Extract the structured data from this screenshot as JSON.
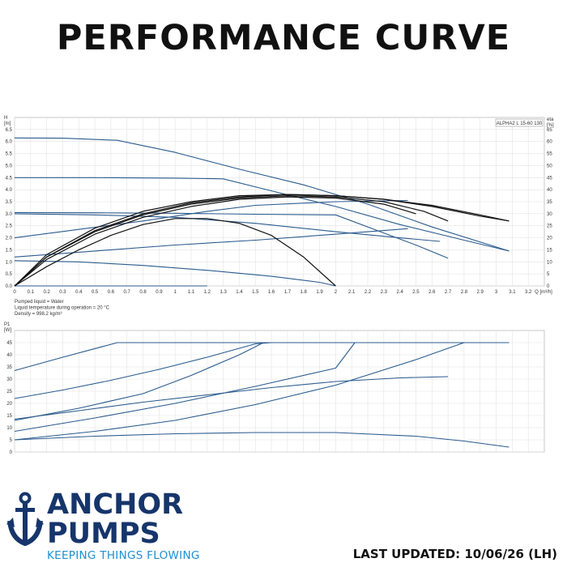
{
  "title": "PERFORMANCE CURVE",
  "brand": {
    "line1": "ANCHOR",
    "line2": "PUMPS",
    "tagline": "KEEPING THINGS FLOWING"
  },
  "updated": "LAST UPDATED: 10/06/26 (LH)",
  "colors": {
    "curve": "#2a5b8e",
    "eff": "#111111",
    "brand": "#16356b",
    "tagline": "#1f8fd0",
    "grid": "#e3e3e3"
  },
  "chart_data": [
    {
      "type": "line",
      "title": "",
      "model_label": "ALPHA2 L 15-60 130",
      "ylabel_left": "H\n[m]",
      "ylabel_right": "eta\n[%]",
      "xlabel": "Q [m³/h]",
      "xlim": [
        0,
        3.3
      ],
      "ylim": [
        0,
        7.0
      ],
      "ylim_right": [
        0,
        70
      ],
      "x_ticks": [
        0,
        0.1,
        0.2,
        0.3,
        0.4,
        0.5,
        0.6,
        0.7,
        0.8,
        0.9,
        1.0,
        1.1,
        1.2,
        1.3,
        1.4,
        1.5,
        1.6,
        1.7,
        1.8,
        1.9,
        2.0,
        2.1,
        2.2,
        2.3,
        2.4,
        2.5,
        2.6,
        2.7,
        2.8,
        2.9,
        3.0,
        3.1,
        3.2
      ],
      "y_ticks": [
        0.0,
        0.5,
        1.0,
        1.5,
        2.0,
        2.5,
        3.0,
        3.5,
        4.0,
        4.5,
        5.0,
        5.5,
        6.0,
        6.5
      ],
      "y_ticks_right": [
        0,
        5,
        10,
        15,
        20,
        25,
        30,
        35,
        40,
        45,
        50,
        55,
        60,
        65
      ],
      "grid": true,
      "notes": [
        "Pumped liquid = Water",
        "Liquid temperature during operation = 20 °C",
        "Density = 998.2 kg/m³"
      ],
      "head_series": [
        {
          "x": [
            0,
            0.3,
            0.64,
            1.0,
            1.4,
            1.8,
            2.2,
            2.6,
            3.08
          ],
          "y": [
            6.15,
            6.14,
            6.05,
            5.55,
            4.85,
            4.2,
            3.4,
            2.45,
            1.45
          ]
        },
        {
          "x": [
            0,
            0.5,
            1.0,
            1.3,
            1.6,
            2.0,
            2.4,
            2.8,
            3.08
          ],
          "y": [
            4.5,
            4.5,
            4.48,
            4.45,
            3.95,
            3.3,
            2.55,
            1.9,
            1.45
          ]
        },
        {
          "x": [
            0,
            0.5,
            1.0,
            1.5,
            2.0,
            2.3,
            2.5,
            2.7
          ],
          "y": [
            3.05,
            3.04,
            3.02,
            2.98,
            2.95,
            2.2,
            1.7,
            1.15
          ]
        },
        {
          "x": [
            0,
            0.5,
            1.0,
            1.5,
            2.0,
            2.4,
            2.65
          ],
          "y": [
            3.0,
            2.95,
            2.85,
            2.6,
            2.25,
            2.0,
            1.85
          ]
        },
        {
          "x": [
            0,
            0.4,
            0.8,
            1.2,
            1.5,
            2.0,
            2.45
          ],
          "y": [
            2.0,
            2.35,
            2.7,
            3.1,
            3.35,
            3.5,
            3.55
          ]
        },
        {
          "x": [
            0,
            0.5,
            1.0,
            1.5,
            2.0,
            2.45
          ],
          "y": [
            1.2,
            1.45,
            1.7,
            1.9,
            2.15,
            2.38
          ]
        },
        {
          "x": [
            0,
            0.4,
            0.8,
            1.2,
            1.6,
            1.9,
            2.0
          ],
          "y": [
            1.05,
            1.0,
            0.85,
            0.65,
            0.4,
            0.15,
            0.0
          ]
        },
        {
          "x": [
            0,
            0.2,
            0.5,
            0.8,
            1.0,
            1.2
          ],
          "y": [
            0.0,
            0.0,
            0.0,
            0.0,
            0.0,
            0.0
          ]
        }
      ],
      "eff_series": [
        {
          "x": [
            0,
            0.2,
            0.5,
            0.8,
            1.1,
            1.4,
            1.7,
            2.0,
            2.3,
            2.6,
            2.9,
            3.08
          ],
          "y": [
            0,
            13,
            24,
            31,
            35,
            37.5,
            38,
            37.5,
            36,
            33.5,
            29.5,
            27
          ]
        },
        {
          "x": [
            0,
            0.2,
            0.5,
            0.8,
            1.1,
            1.4,
            1.7,
            2.0,
            2.3,
            2.6,
            2.9,
            3.08
          ],
          "y": [
            0,
            12,
            23,
            30,
            34.5,
            37,
            38,
            37.5,
            36,
            33,
            29,
            27
          ]
        },
        {
          "x": [
            0,
            0.2,
            0.5,
            0.8,
            1.1,
            1.4,
            1.7,
            2.0,
            2.3,
            2.55,
            2.7
          ],
          "y": [
            0,
            12,
            22.5,
            29.5,
            34,
            36.5,
            37.5,
            37,
            35,
            31,
            27
          ]
        },
        {
          "x": [
            0,
            0.2,
            0.5,
            0.8,
            1.1,
            1.4,
            1.7,
            2.0,
            2.3,
            2.5
          ],
          "y": [
            0,
            11,
            21.5,
            28.5,
            33,
            36,
            37,
            36.5,
            34,
            30
          ]
        },
        {
          "x": [
            0,
            0.2,
            0.4,
            0.6,
            0.8,
            1.0,
            1.2,
            1.4,
            1.6,
            1.8,
            2.0
          ],
          "y": [
            0,
            8,
            15,
            21,
            25.5,
            28,
            28,
            26,
            21,
            12,
            0
          ]
        }
      ],
      "power_chart": {
        "ylabel": "P1\n[W]",
        "ylim": [
          0,
          50
        ],
        "y_ticks": [
          0,
          5,
          10,
          15,
          20,
          25,
          30,
          35,
          40,
          45
        ],
        "series": [
          {
            "x": [
              0,
              0.3,
              0.64,
              1.0,
              1.5,
              2.0,
              2.5,
              3.08
            ],
            "y": [
              33.5,
              39,
              45,
              45,
              45,
              45,
              45,
              45
            ]
          },
          {
            "x": [
              0,
              0.3,
              0.6,
              0.9,
              1.2,
              1.5,
              1.6,
              2.0,
              2.5,
              3.08
            ],
            "y": [
              22,
              25.5,
              29.5,
              34,
              39,
              44.5,
              45,
              45,
              45,
              45
            ]
          },
          {
            "x": [
              0,
              0.4,
              0.8,
              1.1,
              1.4,
              1.55,
              2.0,
              3.08
            ],
            "y": [
              13,
              18,
              24,
              31.5,
              40,
              45,
              45,
              45
            ]
          },
          {
            "x": [
              0,
              0.4,
              0.8,
              1.2,
              1.6,
              2.0,
              2.4,
              2.7
            ],
            "y": [
              13.5,
              17,
              20.5,
              23.5,
              26.5,
              29,
              30.5,
              31
            ]
          },
          {
            "x": [
              0,
              0.5,
              1.0,
              1.5,
              2.0,
              2.12,
              2.5,
              3.08
            ],
            "y": [
              8.5,
              14,
              20,
              27,
              34.5,
              45,
              45,
              45
            ]
          },
          {
            "x": [
              0,
              0.5,
              1.0,
              1.5,
              2.0,
              2.5,
              2.8,
              3.08
            ],
            "y": [
              5,
              8.5,
              13,
              19.5,
              27.5,
              38,
              45,
              45
            ]
          },
          {
            "x": [
              0,
              0.5,
              1.0,
              1.5,
              2.0,
              2.5,
              2.8,
              3.08
            ],
            "y": [
              5,
              6.5,
              7.5,
              8,
              8,
              6.5,
              4.5,
              2
            ]
          }
        ]
      }
    }
  ]
}
